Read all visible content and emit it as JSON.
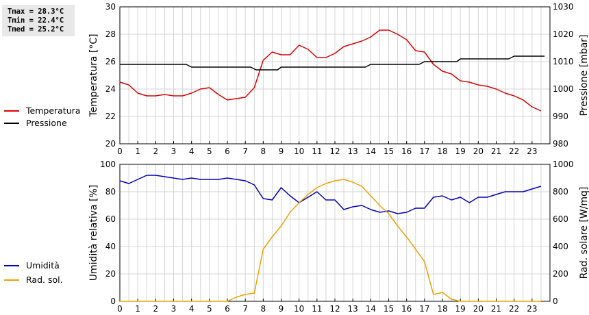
{
  "stats": {
    "tmax": "Tmax = 28.3°C",
    "tmin": "Tmin = 22.4°C",
    "tmed": "Tmed = 25.2°C"
  },
  "chart_data": [
    {
      "type": "line",
      "x_ticks": [
        "0",
        "1",
        "2",
        "3",
        "4",
        "5",
        "6",
        "7",
        "8",
        "9",
        "10",
        "11",
        "12",
        "13",
        "14",
        "15",
        "16",
        "17",
        "18",
        "19",
        "20",
        "21",
        "22",
        "23"
      ],
      "xlim": [
        0,
        24
      ],
      "grid": true,
      "legend_position": "left",
      "left_axis": {
        "label": "Temperatura [°C]",
        "ylim": [
          20,
          30
        ],
        "ticks": [
          20,
          22,
          24,
          26,
          28,
          30
        ]
      },
      "right_axis": {
        "label": "Pressione [mbar]",
        "ylim": [
          980,
          1030
        ],
        "ticks": [
          980,
          990,
          1000,
          1010,
          1020,
          1030
        ]
      },
      "series": [
        {
          "name": "Temperatura",
          "axis": "left",
          "color": "#dd0000",
          "x": [
            0,
            0.5,
            1,
            1.5,
            2,
            2.5,
            3,
            3.5,
            4,
            4.5,
            5,
            5.5,
            6,
            6.5,
            7,
            7.5,
            8,
            8.5,
            9,
            9.5,
            10,
            10.5,
            11,
            11.5,
            12,
            12.5,
            13,
            13.5,
            14,
            14.5,
            15,
            15.5,
            16,
            16.5,
            17,
            17.5,
            18,
            18.5,
            19,
            19.5,
            20,
            20.5,
            21,
            21.5,
            22,
            22.5,
            23,
            23.5
          ],
          "values": [
            24.5,
            24.3,
            23.7,
            23.5,
            23.5,
            23.6,
            23.5,
            23.5,
            23.7,
            24.0,
            24.1,
            23.6,
            23.2,
            23.3,
            23.4,
            24.1,
            26.1,
            26.7,
            26.5,
            26.5,
            27.2,
            26.9,
            26.3,
            26.3,
            26.6,
            27.1,
            27.3,
            27.5,
            27.8,
            28.3,
            28.3,
            28.0,
            27.6,
            26.8,
            26.7,
            25.8,
            25.3,
            25.1,
            24.6,
            24.5,
            24.3,
            24.2,
            24.0,
            23.7,
            23.5,
            23.2,
            22.7,
            22.4
          ]
        },
        {
          "name": "Pressione",
          "axis": "right",
          "color": "#000000",
          "x": [
            0,
            3.7,
            4.0,
            7.3,
            7.6,
            8.8,
            9.0,
            13.7,
            14.0,
            16.7,
            17.0,
            18.8,
            19.0,
            21.7,
            22.0,
            23.7
          ],
          "values": [
            1009,
            1009,
            1008,
            1008,
            1007,
            1007,
            1008,
            1008,
            1009,
            1009,
            1010,
            1010,
            1011,
            1011,
            1012,
            1012
          ]
        }
      ]
    },
    {
      "type": "line",
      "x_ticks": [
        "0",
        "1",
        "2",
        "3",
        "4",
        "5",
        "6",
        "7",
        "8",
        "9",
        "10",
        "11",
        "12",
        "13",
        "14",
        "15",
        "16",
        "17",
        "18",
        "19",
        "20",
        "21",
        "22",
        "23"
      ],
      "xlim": [
        0,
        24
      ],
      "grid": true,
      "legend_position": "left",
      "left_axis": {
        "label": "Umidità relativa [%]",
        "ylim": [
          0,
          100
        ],
        "ticks": [
          0,
          20,
          40,
          60,
          80,
          100
        ]
      },
      "right_axis": {
        "label": "Rad. solare [W/mq]",
        "ylim": [
          0,
          1000
        ],
        "ticks": [
          0,
          200,
          400,
          600,
          800,
          1000
        ]
      },
      "series": [
        {
          "name": "Umidità",
          "axis": "left",
          "color": "#0000bb",
          "x": [
            0,
            0.5,
            1,
            1.5,
            2,
            2.5,
            3,
            3.5,
            4,
            4.5,
            5,
            5.5,
            6,
            6.5,
            7,
            7.5,
            8,
            8.5,
            9,
            9.5,
            10,
            10.5,
            11,
            11.5,
            12,
            12.5,
            13,
            13.5,
            14,
            14.5,
            15,
            15.5,
            16,
            16.5,
            17,
            17.5,
            18,
            18.5,
            19,
            19.5,
            20,
            20.5,
            21,
            21.5,
            22,
            22.5,
            23,
            23.5
          ],
          "values": [
            88,
            86,
            89,
            92,
            92,
            91,
            90,
            89,
            90,
            89,
            89,
            89,
            90,
            89,
            88,
            85,
            75,
            74,
            83,
            77,
            72,
            76,
            80,
            74,
            74,
            67,
            69,
            70,
            67,
            65,
            66,
            64,
            65,
            68,
            68,
            76,
            77,
            74,
            76,
            72,
            76,
            76,
            78,
            80,
            80,
            80,
            82,
            84
          ]
        },
        {
          "name": "Rad. sol.",
          "axis": "right",
          "color": "#f0a000",
          "x": [
            0,
            0.5,
            1,
            1.5,
            2,
            2.5,
            3,
            3.5,
            4,
            4.5,
            5,
            5.5,
            6,
            6.5,
            7,
            7.5,
            8,
            8.5,
            9,
            9.5,
            10,
            10.5,
            11,
            11.5,
            12,
            12.5,
            13,
            13.5,
            14,
            14.5,
            15,
            15.5,
            16,
            16.5,
            17,
            17.5,
            18,
            18.5,
            19,
            19.5,
            20,
            20.5,
            21,
            21.5,
            22,
            22.5,
            23,
            23.5
          ],
          "values": [
            0,
            0,
            0,
            0,
            0,
            0,
            0,
            0,
            0,
            0,
            0,
            0,
            0,
            30,
            50,
            60,
            380,
            470,
            550,
            650,
            720,
            780,
            830,
            860,
            880,
            890,
            870,
            840,
            770,
            700,
            640,
            550,
            470,
            380,
            290,
            50,
            65,
            15,
            0,
            0,
            0,
            0,
            0,
            0,
            0,
            0,
            0,
            0
          ]
        }
      ]
    }
  ]
}
